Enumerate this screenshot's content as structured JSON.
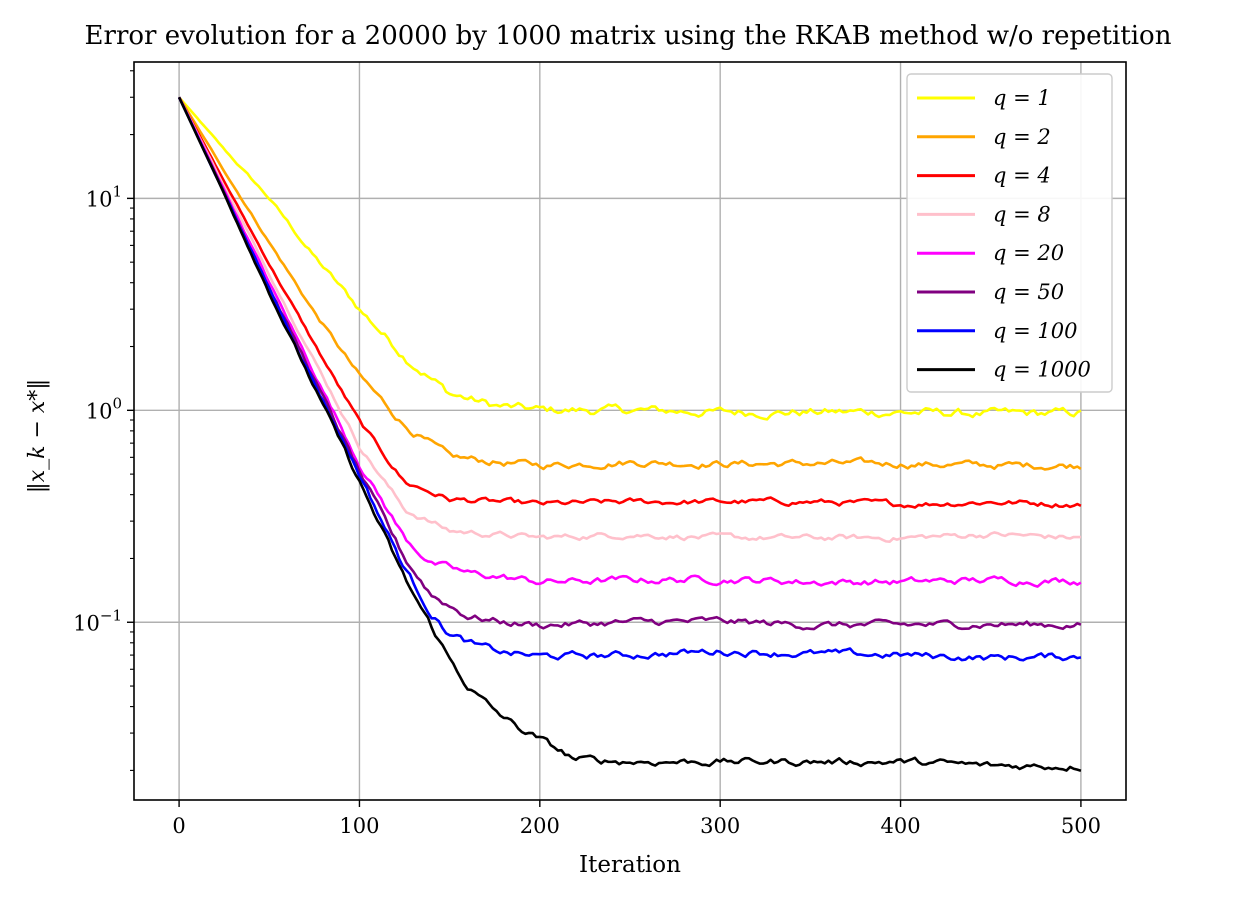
{
  "chart_data": {
    "type": "line",
    "title": "Error evolution for a 20000 by 1000 matrix using the RKAB method w/o repetition",
    "xlabel": "Iteration",
    "ylabel": "‖x_k − x*‖",
    "xlim": [
      -25,
      525
    ],
    "ylim": [
      0.0145,
      44
    ],
    "yscale": "log",
    "grid": true,
    "legend_position": "top-right",
    "x_ticks": [
      {
        "value": 0,
        "label": "0"
      },
      {
        "value": 100,
        "label": "100"
      },
      {
        "value": 200,
        "label": "200"
      },
      {
        "value": 300,
        "label": "300"
      },
      {
        "value": 400,
        "label": "400"
      },
      {
        "value": 500,
        "label": "500"
      }
    ],
    "y_ticks": [
      {
        "value": 10,
        "base": "10",
        "exp": "1"
      },
      {
        "value": 1,
        "base": "10",
        "exp": "0"
      },
      {
        "value": 0.1,
        "base": "10",
        "exp": "−1"
      }
    ],
    "series": [
      {
        "name": "q = 1",
        "color": "#ffff00",
        "noise": 0.015,
        "x": [
          0,
          25,
          50,
          75,
          100,
          125,
          150,
          175,
          200,
          250,
          300,
          350,
          400,
          450,
          500
        ],
        "y": [
          30,
          17,
          10,
          5.3,
          3.0,
          1.8,
          1.2,
          1.05,
          1.0,
          1.0,
          0.98,
          0.98,
          0.98,
          0.96,
          0.97
        ]
      },
      {
        "name": "q = 2",
        "color": "#ffa500",
        "noise": 0.012,
        "x": [
          0,
          25,
          50,
          75,
          100,
          125,
          150,
          175,
          200,
          250,
          300,
          350,
          400,
          450,
          500
        ],
        "y": [
          30,
          13.5,
          6.2,
          2.9,
          1.45,
          0.85,
          0.6,
          0.57,
          0.55,
          0.57,
          0.56,
          0.56,
          0.56,
          0.55,
          0.55
        ]
      },
      {
        "name": "q = 4",
        "color": "#ff0000",
        "noise": 0.01,
        "x": [
          0,
          25,
          50,
          75,
          100,
          125,
          150,
          175,
          200,
          250,
          300,
          350,
          400,
          450,
          500
        ],
        "y": [
          30,
          12,
          4.9,
          2.05,
          0.88,
          0.46,
          0.38,
          0.37,
          0.36,
          0.37,
          0.37,
          0.37,
          0.36,
          0.37,
          0.36
        ]
      },
      {
        "name": "q = 8",
        "color": "#ffc0cb",
        "noise": 0.01,
        "x": [
          0,
          25,
          50,
          75,
          100,
          125,
          150,
          175,
          200,
          250,
          300,
          350,
          400,
          450,
          500
        ],
        "y": [
          30,
          11.4,
          4.4,
          1.72,
          0.68,
          0.34,
          0.27,
          0.26,
          0.25,
          0.26,
          0.25,
          0.25,
          0.25,
          0.26,
          0.25
        ]
      },
      {
        "name": "q = 20",
        "color": "#ff00ff",
        "noise": 0.012,
        "x": [
          0,
          25,
          50,
          75,
          100,
          125,
          140,
          160,
          175,
          200,
          250,
          300,
          350,
          400,
          450,
          500
        ],
        "y": [
          30,
          11.0,
          4.0,
          1.5,
          0.56,
          0.25,
          0.19,
          0.17,
          0.165,
          0.155,
          0.158,
          0.16,
          0.155,
          0.155,
          0.158,
          0.157
        ]
      },
      {
        "name": "q = 50",
        "color": "#800080",
        "noise": 0.012,
        "x": [
          0,
          25,
          50,
          75,
          100,
          125,
          140,
          160,
          180,
          200,
          250,
          300,
          350,
          400,
          450,
          500
        ],
        "y": [
          30,
          10.7,
          3.8,
          1.4,
          0.51,
          0.2,
          0.135,
          0.107,
          0.1,
          0.097,
          0.1,
          0.101,
          0.097,
          0.097,
          0.098,
          0.097
        ]
      },
      {
        "name": "q = 100",
        "color": "#0000ff",
        "noise": 0.012,
        "x": [
          0,
          25,
          50,
          75,
          100,
          125,
          140,
          150,
          165,
          180,
          200,
          250,
          300,
          350,
          400,
          450,
          500
        ],
        "y": [
          30,
          10.6,
          3.75,
          1.35,
          0.5,
          0.18,
          0.11,
          0.088,
          0.077,
          0.072,
          0.069,
          0.07,
          0.073,
          0.071,
          0.07,
          0.068,
          0.069
        ]
      },
      {
        "name": "q = 1000",
        "color": "#000000",
        "noise": 0.012,
        "x": [
          0,
          25,
          50,
          75,
          100,
          125,
          150,
          160,
          175,
          190,
          200,
          210,
          220,
          250,
          300,
          350,
          400,
          450,
          500
        ],
        "y": [
          30,
          10.5,
          3.6,
          1.28,
          0.46,
          0.16,
          0.067,
          0.05,
          0.038,
          0.031,
          0.028,
          0.025,
          0.0225,
          0.022,
          0.022,
          0.022,
          0.022,
          0.021,
          0.021
        ]
      }
    ]
  }
}
